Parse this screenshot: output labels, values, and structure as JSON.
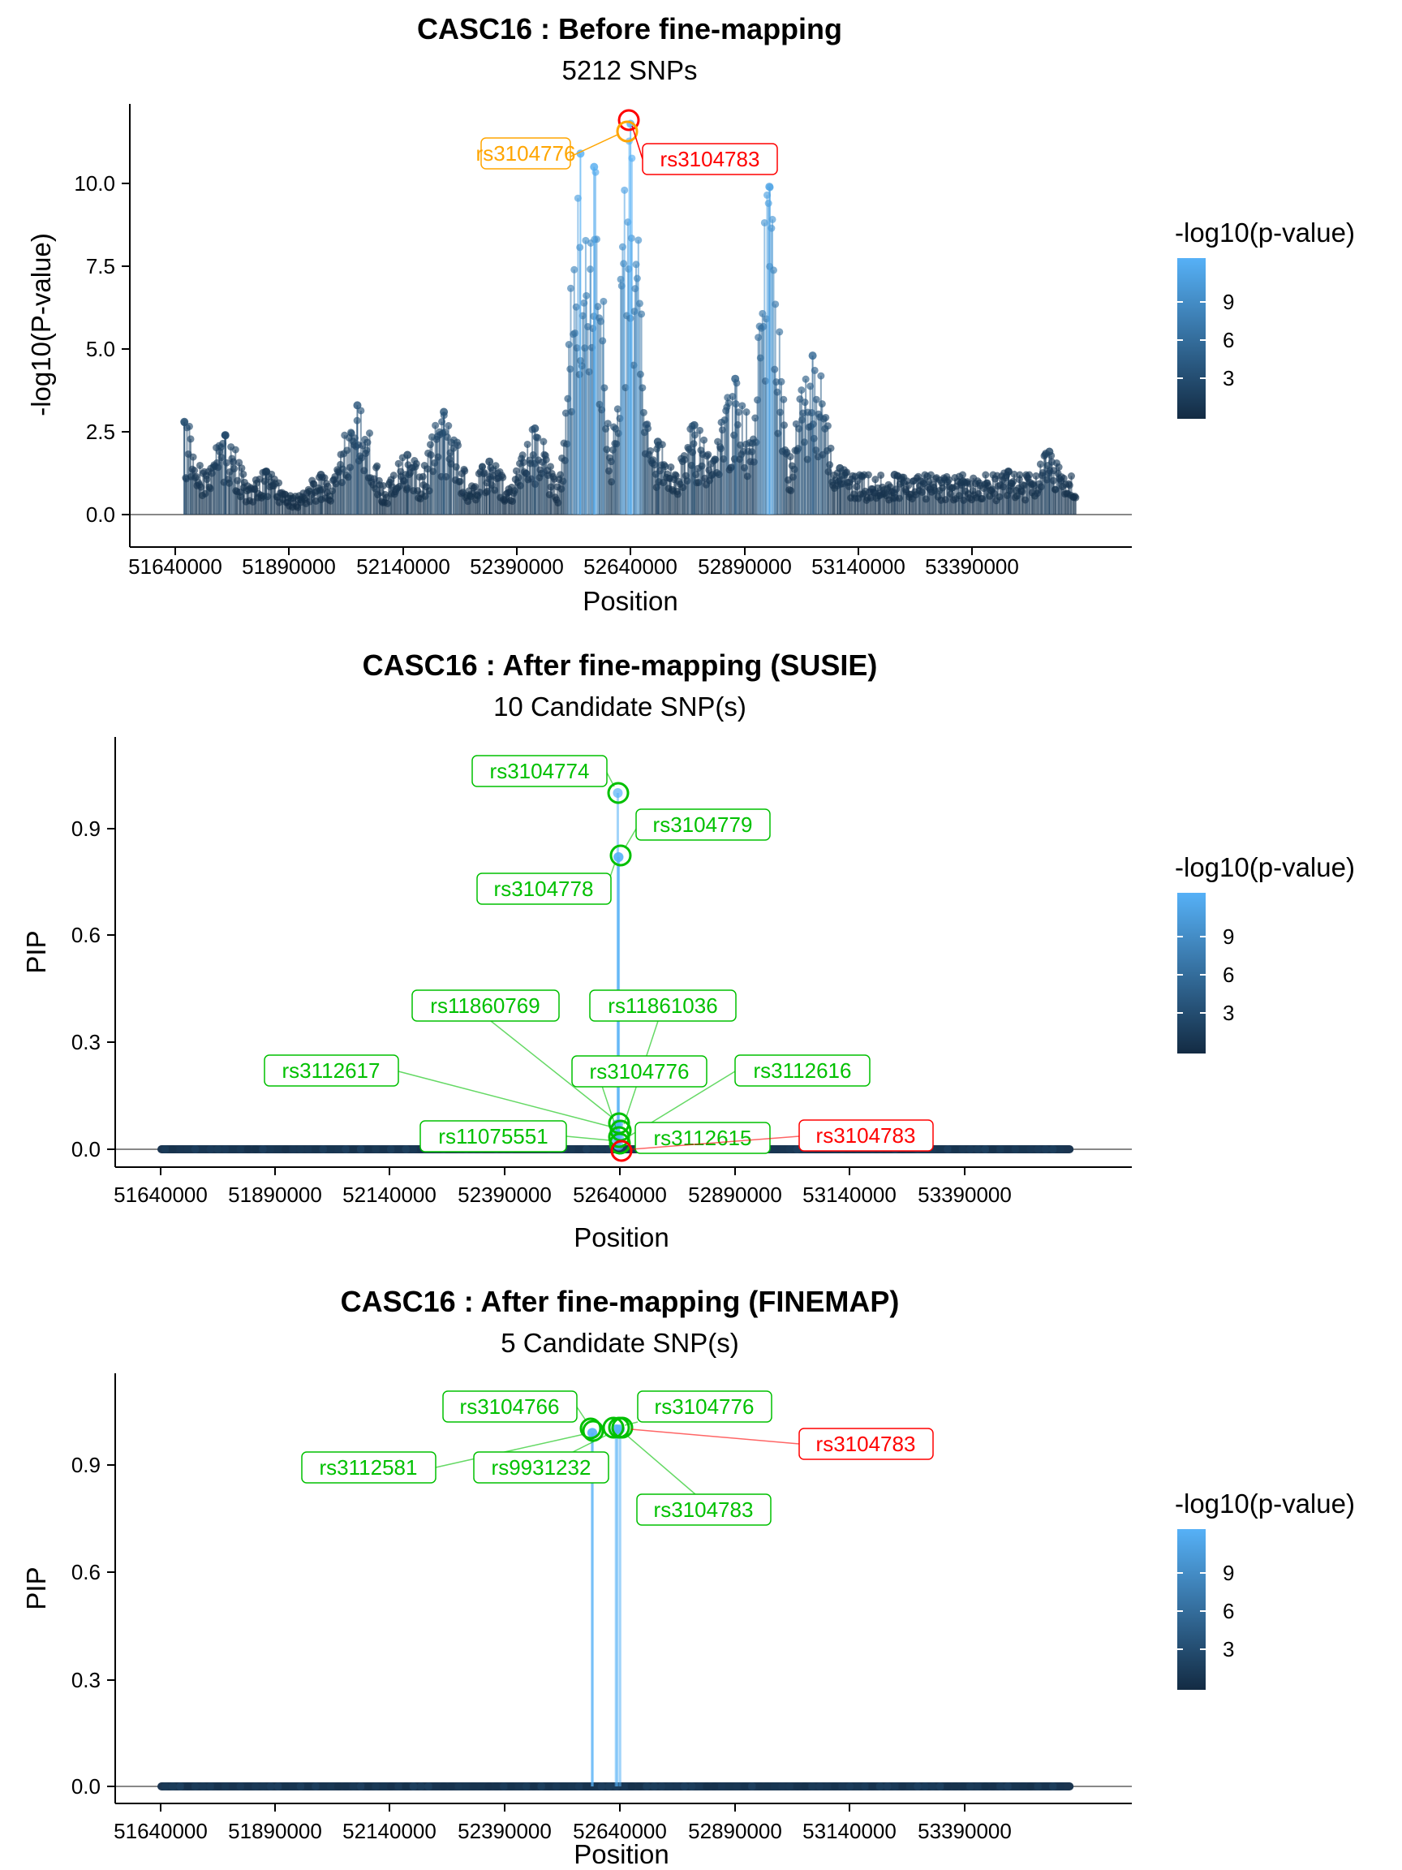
{
  "chart_data": [
    {
      "type": "scatter",
      "title": "CASC16 : Before fine-mapping",
      "subtitle": "5212 SNPs",
      "xlabel": "Position",
      "ylabel": "-log10(P-value)",
      "xlim": [
        51640000,
        53640000
      ],
      "ylim": [
        0,
        12
      ],
      "x_ticks": [
        51640000,
        51890000,
        52140000,
        52390000,
        52640000,
        52890000,
        53140000,
        53390000
      ],
      "y_ticks": [
        0.0,
        2.5,
        5.0,
        7.5,
        10.0
      ],
      "y_tick_labels": [
        "0.0",
        "2.5",
        "5.0",
        "7.5",
        "10.0"
      ],
      "legend": {
        "title": "-log10(p-value)",
        "labels": [
          "3",
          "6",
          "9"
        ],
        "placement": "right"
      },
      "grid": false,
      "peaks": [
        {
          "x": 51660000,
          "y": 2.8
        },
        {
          "x": 51750000,
          "y": 2.4
        },
        {
          "x": 51840000,
          "y": 1.3
        },
        {
          "x": 51960000,
          "y": 1.2
        },
        {
          "x": 52040000,
          "y": 3.3
        },
        {
          "x": 52150000,
          "y": 1.8
        },
        {
          "x": 52230000,
          "y": 3.1
        },
        {
          "x": 52330000,
          "y": 1.6
        },
        {
          "x": 52430000,
          "y": 2.6
        },
        {
          "x": 52530000,
          "y": 10.9
        },
        {
          "x": 52560000,
          "y": 10.5
        },
        {
          "x": 52640000,
          "y": 11.8
        },
        {
          "x": 52700000,
          "y": 2.2
        },
        {
          "x": 52780000,
          "y": 2.7
        },
        {
          "x": 52870000,
          "y": 4.1
        },
        {
          "x": 52945000,
          "y": 9.9
        },
        {
          "x": 53040000,
          "y": 4.8
        },
        {
          "x": 53100000,
          "y": 1.4
        },
        {
          "x": 53220000,
          "y": 1.2
        },
        {
          "x": 53370000,
          "y": 1.0
        },
        {
          "x": 53470000,
          "y": 1.3
        },
        {
          "x": 53560000,
          "y": 1.9
        }
      ],
      "highlighted": [
        {
          "label": "rs3104776",
          "x": 52630000,
          "y": 11.6,
          "color": "#ffa500"
        },
        {
          "label": "rs3104783",
          "x": 52640000,
          "y": 11.9,
          "color": "#ff0000"
        }
      ]
    },
    {
      "type": "scatter",
      "title": "CASC16 : After fine-mapping (SUSIE)",
      "subtitle": "10 Candidate SNP(s)",
      "xlabel": "Position",
      "ylabel": "PIP",
      "xlim": [
        51640000,
        53640000
      ],
      "ylim": [
        0,
        1.1
      ],
      "x_ticks": [
        51640000,
        51890000,
        52140000,
        52390000,
        52640000,
        52890000,
        53140000,
        53390000
      ],
      "y_ticks": [
        0.0,
        0.3,
        0.6,
        0.9
      ],
      "y_tick_labels": [
        "0.0",
        "0.3",
        "0.6",
        "0.9"
      ],
      "legend": {
        "title": "-log10(p-value)",
        "labels": [
          "3",
          "6",
          "9"
        ],
        "placement": "right"
      },
      "grid": false,
      "candidates": [
        {
          "label": "rs3104774",
          "x": 52635000,
          "y": 1.0
        },
        {
          "label": "rs3104779",
          "x": 52637000,
          "y": 0.82
        },
        {
          "label": "rs3104778",
          "x": 52636000,
          "y": 0.82
        },
        {
          "label": "rs11860769",
          "x": 52633000,
          "y": 0.07
        },
        {
          "label": "rs11861036",
          "x": 52636000,
          "y": 0.07
        },
        {
          "label": "rs3112617",
          "x": 52630000,
          "y": 0.05
        },
        {
          "label": "rs3104776",
          "x": 52634000,
          "y": 0.04
        },
        {
          "label": "rs3112616",
          "x": 52638000,
          "y": 0.03
        },
        {
          "label": "rs11075551",
          "x": 52632000,
          "y": 0.02
        },
        {
          "label": "rs3112615",
          "x": 52637000,
          "y": 0.01
        }
      ],
      "lead_snp": {
        "label": "rs3104783",
        "x": 52640000,
        "y": 0.0
      }
    },
    {
      "type": "scatter",
      "title": "CASC16 : After fine-mapping (FINEMAP)",
      "subtitle": "5 Candidate SNP(s)",
      "xlabel": "Position",
      "ylabel": "PIP",
      "xlim": [
        51640000,
        53640000
      ],
      "ylim": [
        0,
        1.1
      ],
      "x_ticks": [
        51640000,
        51890000,
        52140000,
        52390000,
        52640000,
        52890000,
        53140000,
        53390000
      ],
      "y_ticks": [
        0.0,
        0.3,
        0.6,
        0.9
      ],
      "y_tick_labels": [
        "0.0",
        "0.3",
        "0.6",
        "0.9"
      ],
      "legend": {
        "title": "-log10(p-value)",
        "labels": [
          "3",
          "6",
          "9"
        ],
        "placement": "right"
      },
      "grid": false,
      "candidates": [
        {
          "label": "rs3104766",
          "x": 52580000,
          "y": 0.99
        },
        {
          "label": "rs3112581",
          "x": 52579000,
          "y": 0.99
        },
        {
          "label": "rs9931232",
          "x": 52631000,
          "y": 1.0
        },
        {
          "label": "rs3104776",
          "x": 52634000,
          "y": 1.0
        },
        {
          "label": "rs3104783",
          "x": 52640000,
          "y": 1.0
        }
      ],
      "lead_snp": {
        "label": "rs3104783",
        "x": 52640000,
        "y": 1.0
      }
    }
  ]
}
